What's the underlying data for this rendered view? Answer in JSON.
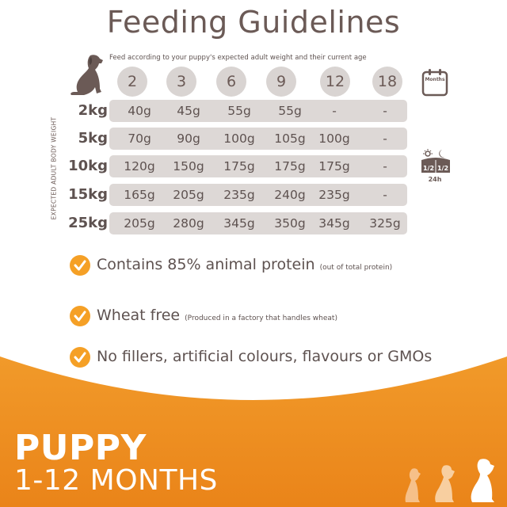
{
  "title": "Feeding Guidelines",
  "subtitle": "Feed according to your puppy's expected adult weight and their current age",
  "side_label": "EXPECTED ADULT BODY WEIGHT",
  "months_label": "Months",
  "daily_label": "24h",
  "portion_labels": [
    "1/2",
    "1/2"
  ],
  "ages": [
    "2",
    "3",
    "6",
    "9",
    "12",
    "18"
  ],
  "rows": [
    {
      "weight": "2kg",
      "values": [
        "40g",
        "45g",
        "55g",
        "55g",
        "-",
        "-"
      ]
    },
    {
      "weight": "5kg",
      "values": [
        "70g",
        "90g",
        "100g",
        "105g",
        "100g",
        "-"
      ]
    },
    {
      "weight": "10kg",
      "values": [
        "120g",
        "150g",
        "175g",
        "175g",
        "175g",
        "-"
      ]
    },
    {
      "weight": "15kg",
      "values": [
        "165g",
        "205g",
        "235g",
        "240g",
        "235g",
        "-"
      ]
    },
    {
      "weight": "25kg",
      "values": [
        "205g",
        "280g",
        "345g",
        "350g",
        "345g",
        "325g"
      ]
    }
  ],
  "features": [
    {
      "main": "Contains 85% animal protein",
      "note": "(out of total protein)"
    },
    {
      "main": "Wheat free",
      "note": "(Produced in a factory that handles wheat)"
    },
    {
      "main": "No fillers, artificial colours, flavours or GMOs",
      "note": ""
    }
  ],
  "banner": {
    "line1": "PUPPY",
    "line2": "1-12 MONTHS"
  },
  "colors": {
    "accent": "#f5a026",
    "band": "#ee8a1c",
    "text": "#6b5a56",
    "cell_bg": "#ddd8d6"
  }
}
